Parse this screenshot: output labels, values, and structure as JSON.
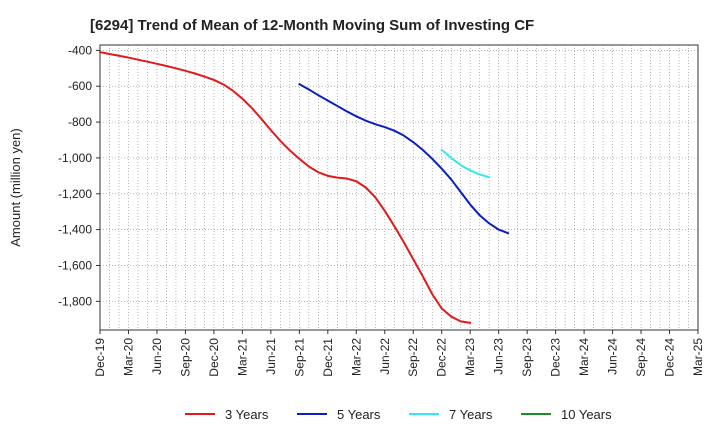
{
  "chart_data": {
    "type": "line",
    "title": "[6294]  Trend of Mean of 12-Month Moving Sum of Investing CF",
    "xlabel": "",
    "ylabel": "Amount (million yen)",
    "ylim": [
      -1960,
      -370
    ],
    "yticks": [
      -400,
      -600,
      -800,
      -1000,
      -1200,
      -1400,
      -1600,
      -1800
    ],
    "ytick_labels": [
      "-400",
      "-600",
      "-800",
      "-1,000",
      "-1,200",
      "-1,400",
      "-1,600",
      "-1,800"
    ],
    "x_categories": [
      "Dec-19",
      "Mar-20",
      "Jun-20",
      "Sep-20",
      "Dec-20",
      "Mar-21",
      "Jun-21",
      "Sep-21",
      "Dec-21",
      "Mar-22",
      "Jun-22",
      "Sep-22",
      "Dec-22",
      "Mar-23",
      "Jun-23",
      "Sep-23",
      "Dec-23",
      "Mar-24",
      "Jun-24",
      "Sep-24",
      "Dec-24",
      "Mar-25"
    ],
    "series": [
      {
        "name": "3 Years",
        "color": "#e31a1c",
        "start_index": 0,
        "values": [
          -410,
          -420,
          -430,
          -440,
          -452,
          -463,
          -475,
          -487,
          -500,
          -514,
          -529,
          -546,
          -565,
          -590,
          -625,
          -670,
          -722,
          -782,
          -845,
          -905,
          -958,
          -1005,
          -1048,
          -1080,
          -1100,
          -1110,
          -1115,
          -1130,
          -1165,
          -1220,
          -1295,
          -1380,
          -1470,
          -1565,
          -1660,
          -1760,
          -1840,
          -1885,
          -1912,
          -1920
        ]
      },
      {
        "name": "5 Years",
        "color": "#0a1fbf",
        "start_index": 21,
        "values": [
          -588,
          -618,
          -650,
          -680,
          -710,
          -740,
          -768,
          -792,
          -812,
          -828,
          -848,
          -875,
          -912,
          -955,
          -1005,
          -1060,
          -1120,
          -1190,
          -1260,
          -1320,
          -1365,
          -1400,
          -1420
        ]
      },
      {
        "name": "7 Years",
        "color": "#33e8f0",
        "start_index": 36,
        "values": [
          -955,
          -1000,
          -1040,
          -1070,
          -1092,
          -1108
        ]
      },
      {
        "name": "10 Years",
        "color": "#1f8c2a",
        "start_index": 0,
        "values": []
      }
    ]
  }
}
